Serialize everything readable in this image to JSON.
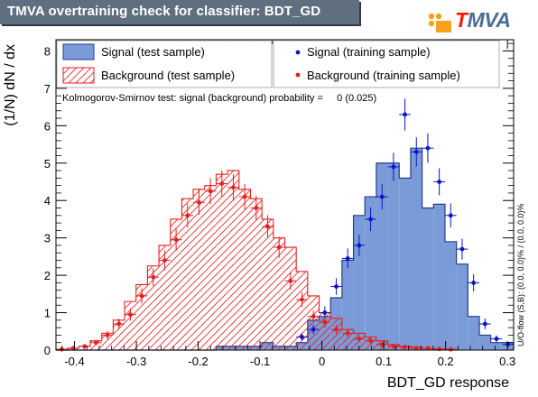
{
  "title": "TMVA overtraining check for classifier: BDT_GD",
  "logo": {
    "first_letter": "T",
    "rest": "MVA",
    "first_color": "#ff1a00",
    "rest_color": "#4c6e93",
    "dot_color": "#f7a21a"
  },
  "ks_text": "Kolmogorov-Smirnov test: signal (background) probability =     0 (0.025)",
  "overflow_text": "U/O-flow (S,B): (0.0, 0.0)% / (0.0, 0.0)%",
  "colors": {
    "signal_fill": "#7b9bd8",
    "signal_line": "#233e8c",
    "signal_marker": "#0a14c8",
    "background_line": "#e81e1e",
    "background_marker": "#e81e1e"
  },
  "chart_data": {
    "type": "bar",
    "xlabel": "BDT_GD response",
    "ylabel": "(1/N) dN / dx",
    "xlim": [
      -0.43,
      0.31
    ],
    "ylim": [
      0,
      8.3
    ],
    "x_ticks": [
      -0.4,
      -0.3,
      -0.2,
      -0.1,
      0,
      0.1,
      0.2,
      0.3
    ],
    "x_tick_labels": [
      "-0.4",
      "-0.3",
      "-0.2",
      "-0.1",
      "0",
      "0.1",
      "0.2",
      "0.3"
    ],
    "y_ticks": [
      0,
      1,
      2,
      3,
      4,
      5,
      6,
      7,
      8
    ],
    "y_tick_labels": [
      "0",
      "1",
      "2",
      "3",
      "4",
      "5",
      "6",
      "7",
      "8"
    ],
    "bin_edges": [
      -0.43,
      -0.4115,
      -0.393,
      -0.3745,
      -0.356,
      -0.3375,
      -0.319,
      -0.3005,
      -0.282,
      -0.2635,
      -0.245,
      -0.2265,
      -0.208,
      -0.1895,
      -0.171,
      -0.1525,
      -0.134,
      -0.1155,
      -0.097,
      -0.0785,
      -0.06,
      -0.0415,
      -0.023,
      -0.0045,
      0.014,
      0.0325,
      0.051,
      0.0695,
      0.088,
      0.1065,
      0.125,
      0.1435,
      0.162,
      0.1805,
      0.199,
      0.2175,
      0.236,
      0.2545,
      0.273,
      0.2915,
      0.31
    ],
    "series": [
      {
        "name": "Signal (test sample)",
        "style": "filled-histogram",
        "values": [
          0,
          0,
          0,
          0,
          0,
          0,
          0,
          0,
          0,
          0,
          0,
          0,
          0,
          0,
          0.1,
          0.1,
          0.1,
          0.1,
          0.2,
          0.1,
          0.1,
          0.2,
          0.8,
          0.9,
          1.4,
          2.4,
          3.6,
          4.1,
          5.0,
          5.0,
          4.6,
          5.4,
          3.8,
          3.9,
          2.9,
          2.3,
          0.9,
          0.4,
          0.2,
          0.2
        ]
      },
      {
        "name": "Background (test sample)",
        "style": "hatched-histogram",
        "values": [
          0.02,
          0.05,
          0.1,
          0.25,
          0.45,
          0.8,
          1.3,
          1.75,
          2.25,
          2.8,
          3.5,
          4.05,
          4.3,
          4.4,
          4.7,
          4.8,
          4.3,
          4.05,
          3.5,
          3.0,
          2.75,
          2.1,
          1.45,
          1.0,
          0.85,
          0.55,
          0.45,
          0.35,
          0.25,
          0.15,
          0.1,
          0.08,
          0.05,
          0.03,
          0.02,
          0,
          0,
          0,
          0,
          0
        ]
      },
      {
        "name": "Signal (training sample)",
        "style": "markers",
        "values": [
          0,
          0,
          0,
          0,
          0,
          0,
          0,
          0,
          0,
          0,
          0,
          0,
          0,
          0,
          0,
          0,
          0,
          0,
          0,
          0,
          0,
          0.35,
          0.55,
          1.0,
          1.7,
          2.45,
          2.8,
          3.5,
          4.1,
          4.9,
          6.3,
          5.3,
          5.4,
          4.5,
          3.6,
          2.7,
          1.8,
          0.7,
          0.3,
          0.15
        ]
      },
      {
        "name": "Background (training sample)",
        "style": "markers",
        "values": [
          0.02,
          0.05,
          0.1,
          0.2,
          0.4,
          0.7,
          0.95,
          1.45,
          1.95,
          2.4,
          2.95,
          3.6,
          3.95,
          4.25,
          4.45,
          4.35,
          4.1,
          3.8,
          3.3,
          2.75,
          1.85,
          1.35,
          0.9,
          0.75,
          0.55,
          0.45,
          0.3,
          0.25,
          0.15,
          0.1,
          0.08,
          0.05,
          0.05,
          0.03,
          0.02,
          0,
          0,
          0,
          0,
          0
        ]
      }
    ],
    "legend": [
      {
        "label": "Signal (test sample)",
        "kind": "signal-box"
      },
      {
        "label": "Signal (training sample)",
        "kind": "signal-marker"
      },
      {
        "label": "Background (test sample)",
        "kind": "background-box"
      },
      {
        "label": "Background (training sample)",
        "kind": "background-marker"
      }
    ],
    "legend_position": "top",
    "grid": false
  }
}
